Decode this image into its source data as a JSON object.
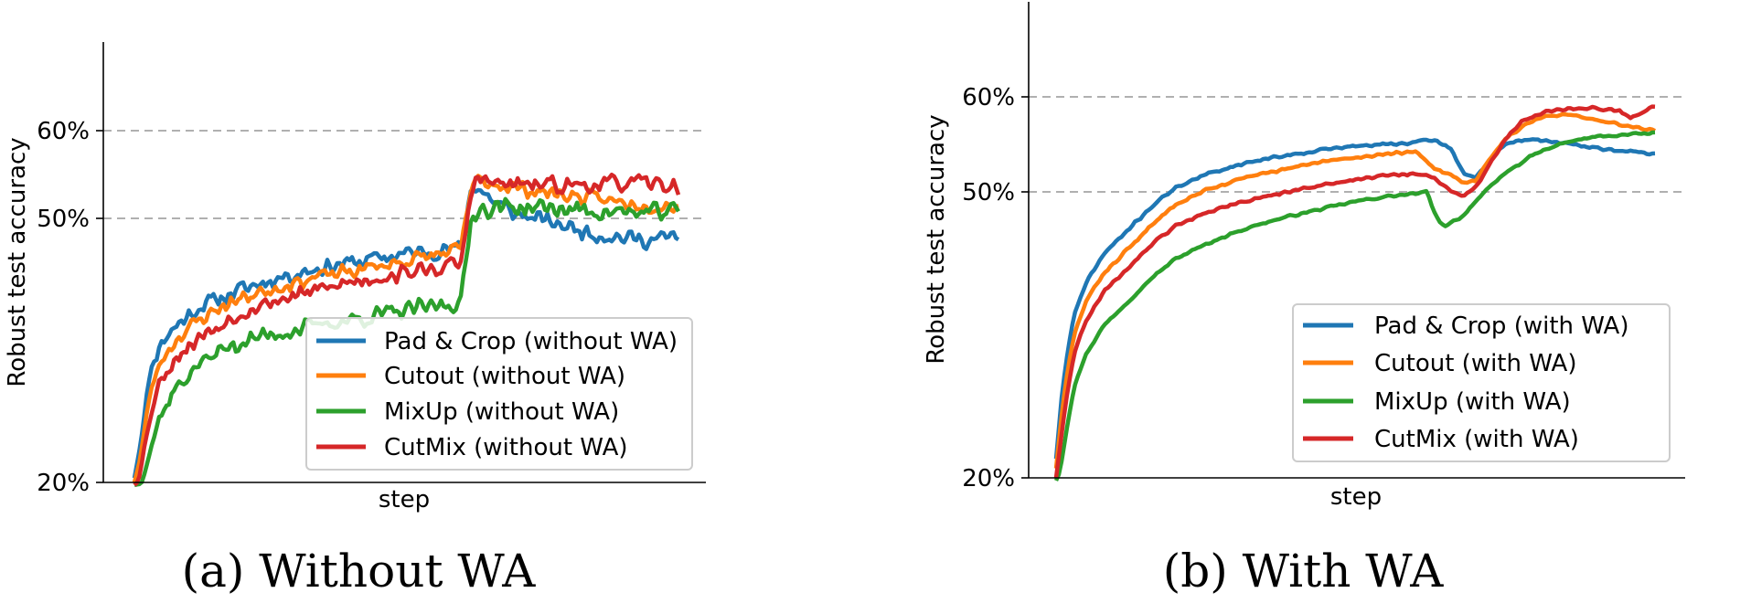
{
  "chart_data": [
    {
      "type": "line",
      "caption": "(a)  Without WA",
      "xlabel": "step",
      "ylabel": "Robust test accuracy",
      "yscale": "custom",
      "y_ticks": [
        20,
        50,
        60
      ],
      "y_tick_labels": [
        "20%",
        "50%",
        "60%"
      ],
      "gridlines_y": [
        50,
        60
      ],
      "ylim": [
        20,
        60
      ],
      "xlim": [
        0,
        100
      ],
      "legend_position": "bottom-right",
      "series": [
        {
          "name": "Pad & Crop (without WA)",
          "color": "#1f77b4",
          "noise": 1.1,
          "seed": 11,
          "x": [
            0,
            1,
            3,
            5,
            8,
            12,
            16,
            20,
            25,
            30,
            35,
            40,
            45,
            50,
            55,
            58,
            60,
            61,
            62,
            63,
            66,
            70,
            75,
            80,
            85,
            90,
            95,
            100
          ],
          "values": [
            20.5,
            24,
            33,
            36,
            38,
            40,
            41,
            42,
            43,
            43.8,
            44.5,
            45,
            45.5,
            46,
            46.3,
            46.5,
            46.6,
            50,
            54,
            53.5,
            52,
            50.5,
            49.8,
            49,
            48.2,
            47.8,
            47.5,
            48
          ]
        },
        {
          "name": "Cutout (without WA)",
          "color": "#ff7f0e",
          "noise": 1.0,
          "seed": 23,
          "x": [
            0,
            1,
            3,
            5,
            8,
            12,
            16,
            20,
            25,
            30,
            35,
            40,
            45,
            50,
            55,
            58,
            60,
            61,
            62,
            63,
            66,
            70,
            75,
            80,
            85,
            90,
            95,
            100
          ],
          "values": [
            20,
            22.5,
            30.5,
            34,
            36.5,
            38.5,
            40,
            41,
            42,
            42.8,
            43.5,
            44,
            44.6,
            45.2,
            45.8,
            46.2,
            46.4,
            50,
            53.8,
            54.2,
            54,
            53.5,
            53,
            52.6,
            52.2,
            51.8,
            51.5,
            51.5
          ]
        },
        {
          "name": "MixUp (without WA)",
          "color": "#2ca02c",
          "noise": 1.2,
          "seed": 37,
          "x": [
            0,
            1,
            3,
            5,
            8,
            12,
            16,
            20,
            25,
            30,
            35,
            40,
            45,
            50,
            55,
            58,
            60,
            61,
            62,
            63,
            66,
            70,
            75,
            80,
            85,
            90,
            95,
            100
          ],
          "values": [
            19,
            19.5,
            24,
            28,
            31,
            33.5,
            35,
            36,
            36.8,
            37.4,
            38,
            38.5,
            39,
            39.5,
            40,
            40.3,
            40.5,
            45,
            50.5,
            51,
            51.2,
            51.3,
            51.2,
            51,
            50.8,
            50.7,
            50.6,
            51
          ]
        },
        {
          "name": "CutMix (without WA)",
          "color": "#d62728",
          "noise": 1.1,
          "seed": 53,
          "x": [
            0,
            1,
            3,
            5,
            8,
            12,
            16,
            20,
            25,
            30,
            35,
            40,
            45,
            50,
            55,
            58,
            60,
            61,
            62,
            63,
            66,
            70,
            75,
            80,
            85,
            90,
            95,
            100
          ],
          "values": [
            19,
            21,
            28,
            32,
            34.5,
            36.5,
            38,
            39.5,
            40.5,
            41.3,
            42,
            42.8,
            43.3,
            43.8,
            44.3,
            44.6,
            44.8,
            49,
            53.5,
            54.5,
            54,
            53.8,
            53.8,
            53.8,
            53.9,
            54,
            54,
            53.5
          ]
        }
      ]
    },
    {
      "type": "line",
      "caption": "(b)  With WA",
      "xlabel": "step",
      "ylabel": "Robust test accuracy",
      "yscale": "custom",
      "y_ticks": [
        20,
        50,
        60
      ],
      "y_tick_labels": [
        "20%",
        "50%",
        "60%"
      ],
      "gridlines_y": [
        50,
        60
      ],
      "ylim": [
        20,
        60
      ],
      "xlim": [
        0,
        100
      ],
      "legend_position": "lower-right",
      "series": [
        {
          "name": "Pad & Crop (with WA)",
          "color": "#1f77b4",
          "noise": 0.18,
          "seed": 71,
          "x": [
            0,
            1,
            2,
            3,
            5,
            8,
            12,
            16,
            20,
            25,
            30,
            35,
            40,
            45,
            50,
            55,
            60,
            63,
            66,
            68,
            70,
            72,
            75,
            78,
            82,
            86,
            90,
            95,
            100
          ],
          "values": [
            22,
            29,
            33.5,
            37,
            40.5,
            43.5,
            46,
            48.5,
            50.5,
            51.8,
            52.8,
            53.5,
            54,
            54.5,
            54.8,
            55,
            55.2,
            55.5,
            54.5,
            52,
            51.5,
            53,
            55,
            55.5,
            55.4,
            55,
            54.6,
            54.3,
            54
          ]
        },
        {
          "name": "Cutout (with WA)",
          "color": "#ff7f0e",
          "noise": 0.18,
          "seed": 83,
          "x": [
            0,
            1,
            2,
            3,
            5,
            8,
            12,
            16,
            20,
            25,
            30,
            35,
            40,
            45,
            50,
            55,
            60,
            63,
            66,
            68,
            70,
            72,
            75,
            78,
            82,
            86,
            90,
            95,
            100
          ],
          "values": [
            21,
            27,
            31.5,
            35,
            38.5,
            41.5,
            44,
            46.5,
            48.8,
            50.2,
            51.2,
            52,
            52.6,
            53.2,
            53.6,
            54,
            54.2,
            52.5,
            51.8,
            51,
            51.2,
            53,
            55.5,
            57,
            58,
            58.2,
            57.6,
            57,
            56.5
          ]
        },
        {
          "name": "MixUp (with WA)",
          "color": "#2ca02c",
          "noise": 0.14,
          "seed": 97,
          "x": [
            0,
            1,
            2,
            3,
            5,
            8,
            12,
            16,
            20,
            25,
            30,
            35,
            40,
            45,
            50,
            55,
            60,
            62,
            63,
            64,
            65,
            66,
            68,
            70,
            75,
            80,
            85,
            90,
            95,
            100
          ],
          "values": [
            19,
            22,
            26,
            29.5,
            33,
            36,
            38.5,
            41,
            43,
            44.5,
            45.8,
            46.8,
            47.6,
            48.3,
            49,
            49.5,
            49.8,
            50,
            48,
            46.8,
            46.5,
            46.8,
            47.5,
            49,
            52,
            54,
            55.2,
            55.8,
            56,
            56.2
          ]
        },
        {
          "name": "CutMix (with WA)",
          "color": "#d62728",
          "noise": 0.18,
          "seed": 109,
          "x": [
            0,
            1,
            2,
            3,
            5,
            8,
            12,
            16,
            20,
            25,
            30,
            35,
            40,
            45,
            50,
            55,
            60,
            63,
            66,
            68,
            70,
            72,
            75,
            78,
            82,
            86,
            90,
            94,
            96,
            98,
            100
          ],
          "values": [
            20,
            25,
            29.5,
            33,
            36.5,
            39.5,
            42,
            44.5,
            46.5,
            47.8,
            48.8,
            49.5,
            50.2,
            50.8,
            51.3,
            51.7,
            51.9,
            51.5,
            50,
            49.5,
            50.5,
            52.5,
            55.5,
            57.5,
            58.5,
            58.8,
            58.8,
            58.5,
            57.8,
            58.5,
            59
          ]
        }
      ]
    }
  ]
}
